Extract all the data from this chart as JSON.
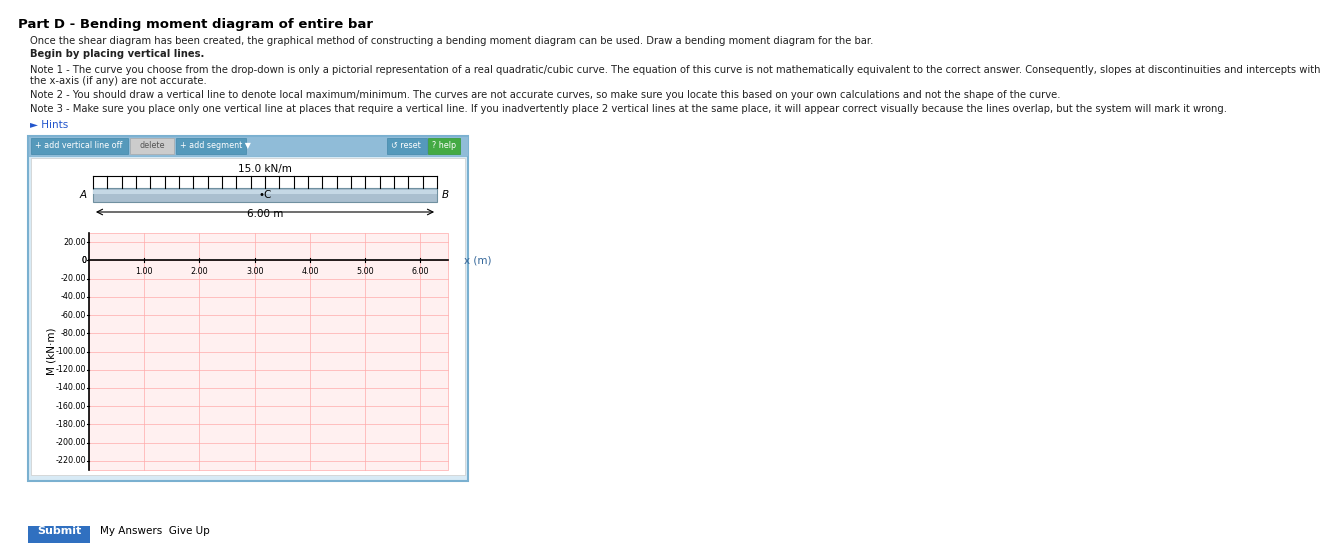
{
  "page_bg": "#ffffff",
  "title": "Part D - Bending moment diagram of entire bar",
  "hints_text": "► Hints",
  "beam_label": "15.0 kN/m",
  "beam_left": "A",
  "beam_mid": "•C",
  "beam_right": "B",
  "beam_length_label": "6.00 m",
  "outer_box_bg": "#d8eaf5",
  "toolbar_bg": "#90bcd8",
  "btn1_color": "#5599bb",
  "btn2_color": "#cccccc",
  "btn3_color": "#5599bb",
  "btn4_color": "#5599bb",
  "btn5_color": "#44aa44",
  "beam_color": "#aabfcf",
  "beam_highlight": "#c5d8e5",
  "graph_bg": "#fff0f0",
  "grid_color": "#ffaaaa",
  "xlabel": "x (m)",
  "ylabel": "M (kN·m)",
  "x_ticks": [
    1.0,
    2.0,
    3.0,
    4.0,
    5.0,
    6.0
  ],
  "y_ticks": [
    20.0,
    0,
    -20.0,
    -40.0,
    -60.0,
    -80.0,
    -100.0,
    -120.0,
    -140.0,
    -160.0,
    -180.0,
    -200.0,
    -220.0
  ],
  "ylim": [
    -230,
    30
  ],
  "xlim": [
    0,
    6.5
  ],
  "submit_bg": "#3070c0",
  "desc1": "Once the shear diagram has been created, the graphical method of constructing a bending moment diagram can be used. Draw a bending moment diagram for the bar.",
  "desc2": "Begin by placing vertical lines.",
  "desc3a": "Note 1 - The curve you choose from the drop-down is only a pictorial representation of a real quadratic/cubic curve. The equation of this curve is not mathematically equivalent to the correct answer. Consequently, slopes at discontinuities and intercepts with",
  "desc3b": "the x-axis (if any) are not accurate.",
  "desc4": "Note 2 - You should draw a vertical line to denote local maximum/minimum. The curves are not accurate curves, so make sure you locate this based on your own calculations and not the shape of the curve.",
  "desc5": "Note 3 - Make sure you place only one vertical line at places that require a vertical line. If you inadvertently place 2 vertical lines at the same place, it will appear correct visually because the lines overlap, but the system will mark it wrong."
}
